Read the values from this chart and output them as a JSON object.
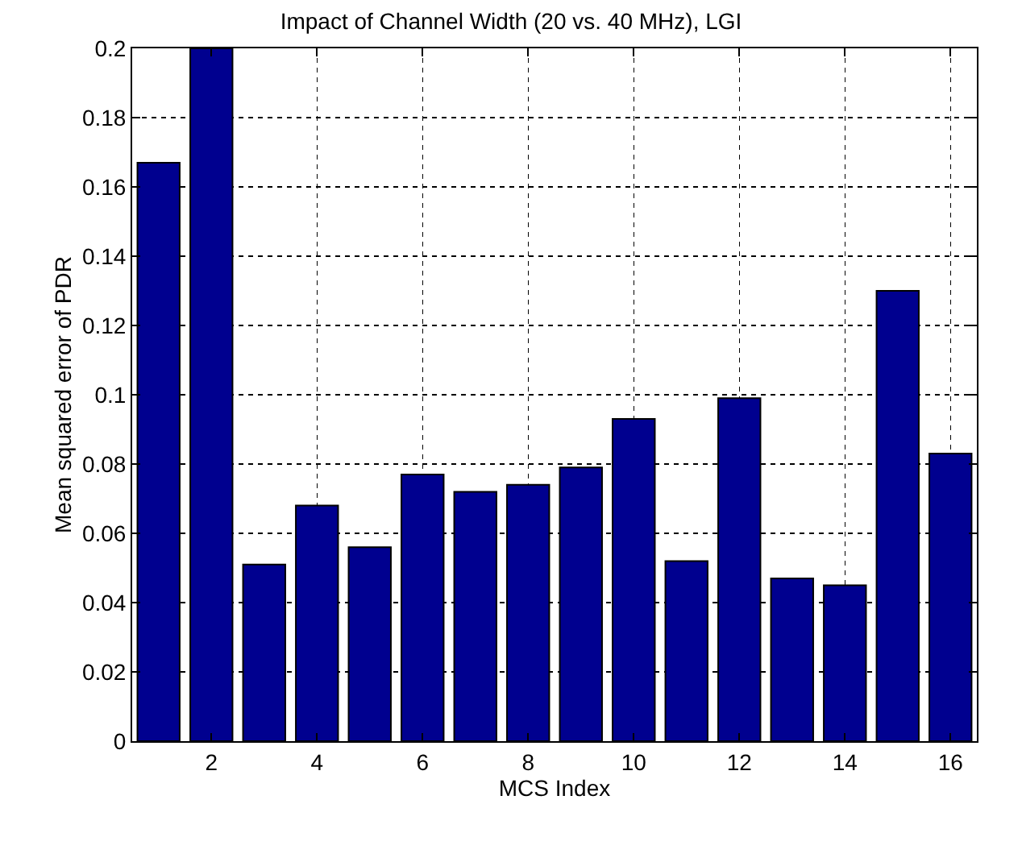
{
  "chart_data": {
    "type": "bar",
    "title": "Impact of Channel Width (20 vs. 40 MHz), LGI",
    "xlabel": "MCS Index",
    "ylabel": "Mean squared error of PDR",
    "x": [
      1,
      2,
      3,
      4,
      5,
      6,
      7,
      8,
      9,
      10,
      11,
      12,
      13,
      14,
      15,
      16
    ],
    "values": [
      0.167,
      0.2,
      0.051,
      0.068,
      0.056,
      0.077,
      0.072,
      0.074,
      0.079,
      0.093,
      0.052,
      0.099,
      0.047,
      0.045,
      0.13,
      0.083
    ],
    "color": "#00008f",
    "xlim": [
      0.5,
      16.5
    ],
    "xticks": [
      2,
      4,
      6,
      8,
      10,
      12,
      14,
      16
    ],
    "ylim": [
      0,
      0.2
    ],
    "yticks": [
      0,
      0.02,
      0.04,
      0.06,
      0.08,
      0.1,
      0.12,
      0.14,
      0.16,
      0.18,
      0.2
    ],
    "grid": true,
    "line_style": "dotted"
  }
}
